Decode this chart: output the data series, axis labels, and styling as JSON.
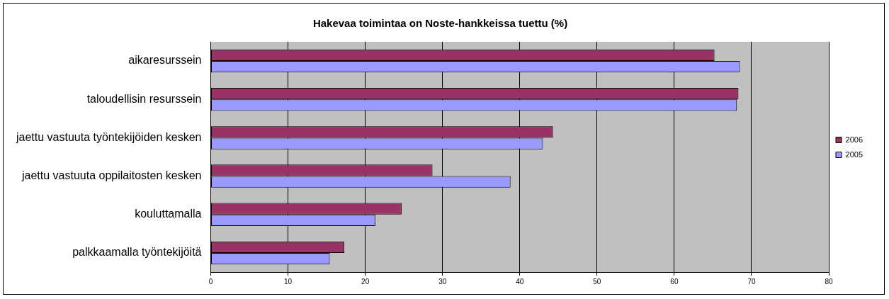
{
  "chart_data": {
    "type": "bar",
    "orientation": "horizontal",
    "title": "Hakevaa toimintaa on Noste-hankkeissa tuettu (%)",
    "categories": [
      "aikaresurssein",
      "taloudellisin resurssein",
      "jaettu vastuuta työntekijöiden kesken",
      "jaettu vastuuta oppilaitosten kesken",
      "kouluttamalla",
      "palkkaamalla työntekijöitä"
    ],
    "series": [
      {
        "name": "2006",
        "color": "#993366",
        "values": [
          65.2,
          68.3,
          44.3,
          28.7,
          24.7,
          17.3
        ]
      },
      {
        "name": "2005",
        "color": "#9999ff",
        "values": [
          68.5,
          68.1,
          43.0,
          38.8,
          21.3,
          15.4
        ]
      }
    ],
    "xlim": [
      0,
      80
    ],
    "xticks": [
      0,
      10,
      20,
      30,
      40,
      50,
      60,
      70,
      80
    ],
    "grid": "x",
    "legend": "right"
  }
}
